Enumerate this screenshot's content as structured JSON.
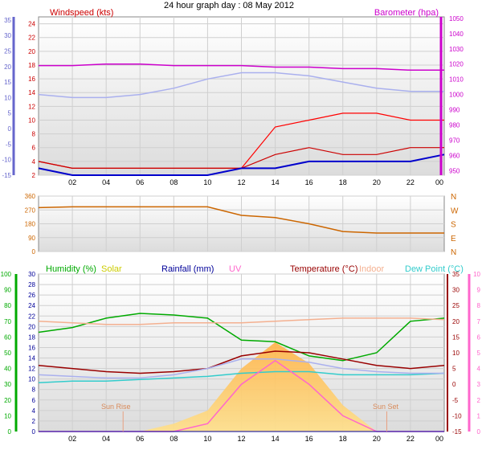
{
  "title": "24 hour graph day : 08 May 2012",
  "x_ticks": [
    "02",
    "04",
    "06",
    "08",
    "10",
    "12",
    "14",
    "16",
    "18",
    "20",
    "22",
    "00"
  ],
  "colors": {
    "windspeed": "#cc0000",
    "gust": "#ff0000",
    "avg_wind": "#0000cc",
    "barometer": "#cc00cc",
    "wind_dir": "#cc6600",
    "humidity": "#00aa00",
    "solar": "#ffcc66",
    "rainfall": "#000099",
    "uv": "#ff66cc",
    "temperature": "#990000",
    "indoor": "#f4b090",
    "dewpoint": "#33cccc",
    "axis_blue": "#6666cc",
    "grid": "#cfcfcf"
  },
  "panels": {
    "wind": {
      "label_windspeed": "Windspeed (kts)",
      "label_barometer": "Barometer (hpa)"
    },
    "direction": {
      "left_ticks": [
        "360",
        "270",
        "180",
        "90",
        "0"
      ],
      "compass": [
        "N",
        "W",
        "S",
        "E",
        "N"
      ]
    },
    "weather": {
      "label_humidity": "Humidity (%)",
      "label_solar": "Solar",
      "label_rainfall": "Rainfall (mm)",
      "label_uv": "UV",
      "label_temperature": "Temperature (°C)",
      "label_indoor": "Indoor",
      "label_dewpoint": "Dew Point (°C)",
      "sunrise": "Sun Rise",
      "sunset": "Sun Set"
    }
  },
  "chart_data": [
    {
      "type": "line",
      "title": "24 hour graph day : 08 May 2012",
      "x": [
        "00",
        "02",
        "04",
        "06",
        "08",
        "10",
        "12",
        "14",
        "16",
        "18",
        "20",
        "22",
        "00"
      ],
      "y_axes": {
        "windspeed": {
          "label": "Windspeed (kts)",
          "ylim": [
            2,
            25
          ],
          "ticks": [
            2,
            4,
            6,
            8,
            10,
            12,
            14,
            16,
            18,
            20,
            22,
            24
          ]
        },
        "barometer": {
          "label": "Barometer (hpa)",
          "ylim": [
            947,
            1051
          ],
          "ticks": [
            950,
            960,
            970,
            980,
            990,
            1000,
            1010,
            1020,
            1030,
            1040,
            1050
          ]
        },
        "outer_blue": {
          "ylim": [
            -15,
            36
          ],
          "ticks": [
            -15,
            -10,
            -5,
            0,
            5,
            10,
            15,
            20,
            25,
            30,
            35
          ]
        }
      },
      "series": [
        {
          "name": "Barometer (hpa)",
          "axis": "barometer",
          "values": [
            1019,
            1019,
            1020,
            1020,
            1019,
            1019,
            1019,
            1018,
            1018,
            1017,
            1017,
            1016,
            1016
          ]
        },
        {
          "name": "Windspeed (kts)",
          "axis": "windspeed",
          "values": [
            4,
            3,
            3,
            3,
            3,
            3,
            3,
            9,
            10,
            11,
            11,
            10,
            10
          ]
        },
        {
          "axis": "windspeed",
          "values": [
            4,
            3,
            3,
            3,
            3,
            3,
            3,
            5,
            6,
            5,
            5,
            6,
            6
          ]
        },
        {
          "axis": "windspeed",
          "values": [
            3,
            2,
            2,
            2,
            2,
            2,
            3,
            3,
            4,
            4,
            4,
            4,
            5
          ]
        },
        {
          "axis": "outer_blue",
          "values": [
            11,
            10,
            10,
            11,
            13,
            16,
            18,
            18,
            17,
            15,
            13,
            12,
            12
          ]
        }
      ],
      "grid": true
    },
    {
      "type": "line",
      "x": [
        "00",
        "02",
        "04",
        "06",
        "08",
        "10",
        "12",
        "14",
        "16",
        "18",
        "20",
        "22",
        "00"
      ],
      "y_axis": {
        "ylim": [
          0,
          360
        ],
        "ticks": [
          "360",
          "270",
          "180",
          "90",
          "0"
        ]
      },
      "compass": [
        "N",
        "W",
        "S",
        "E",
        "N"
      ],
      "series": [
        {
          "values": [
            285,
            290,
            290,
            290,
            290,
            290,
            235,
            220,
            180,
            130,
            120,
            120,
            120
          ]
        }
      ],
      "grid": true
    },
    {
      "type": "line",
      "x": [
        "00",
        "02",
        "04",
        "06",
        "08",
        "10",
        "12",
        "14",
        "16",
        "18",
        "20",
        "22",
        "00"
      ],
      "y_axes": {
        "humidity": {
          "label": "Humidity (%)",
          "ylim": [
            0,
            100
          ],
          "ticks": [
            0,
            10,
            20,
            30,
            40,
            50,
            60,
            70,
            80,
            90,
            100
          ]
        },
        "rainfall": {
          "label": "Rainfall (mm)",
          "ylim": [
            0,
            30
          ],
          "ticks": [
            0,
            2,
            4,
            6,
            8,
            10,
            12,
            14,
            16,
            18,
            20,
            22,
            24,
            26,
            28,
            30
          ]
        },
        "temperature": {
          "label": "Temperature (°C)",
          "ylim": [
            -15,
            35
          ],
          "ticks": [
            -15,
            -10,
            -5,
            0,
            5,
            10,
            15,
            20,
            25,
            30,
            35
          ]
        },
        "uv": {
          "label": "UV",
          "ylim": [
            0,
            10
          ],
          "ticks": [
            0,
            1,
            2,
            3,
            4,
            5,
            6,
            7,
            8,
            9,
            10
          ]
        }
      },
      "series": [
        {
          "name": "Humidity (%)",
          "axis": "humidity",
          "values": [
            63,
            66,
            72,
            75,
            74,
            72,
            58,
            57,
            48,
            45,
            50,
            70,
            72
          ]
        },
        {
          "name": "Indoor",
          "axis": "temperature",
          "values": [
            20,
            19.5,
            19,
            19,
            19.5,
            19.5,
            19.5,
            20,
            20.5,
            21,
            21,
            21,
            20.5
          ]
        },
        {
          "name": "Temperature (°C)",
          "axis": "temperature",
          "values": [
            6,
            5,
            4,
            3.5,
            4,
            5,
            9,
            10.5,
            10,
            8,
            6,
            5,
            6
          ]
        },
        {
          "name": "Dew Point (°C)",
          "axis": "temperature",
          "values": [
            0.5,
            1,
            1,
            1.5,
            2,
            2.5,
            3.5,
            4,
            4,
            3,
            3,
            3,
            3.5
          ]
        },
        {
          "axis": "temperature",
          "values": [
            3,
            2.5,
            2,
            2,
            3,
            5,
            8,
            8,
            7,
            5,
            4,
            3.5,
            3.5
          ]
        },
        {
          "name": "UV",
          "axis": "uv",
          "values": [
            0,
            0,
            0,
            0,
            0,
            0.5,
            3,
            4.5,
            3,
            1,
            0,
            0,
            0
          ]
        },
        {
          "name": "Solar",
          "axis": "rainfall",
          "values": [
            0,
            0,
            0,
            0,
            1.5,
            4,
            12,
            17,
            13,
            5,
            0,
            0,
            0
          ]
        },
        {
          "name": "Rainfall (mm)",
          "axis": "rainfall",
          "values": [
            0,
            0,
            0,
            0,
            0,
            0,
            0,
            0,
            0,
            0,
            0,
            0,
            0
          ]
        }
      ],
      "annotations": [
        "Sun Rise",
        "Sun Set"
      ],
      "grid": true
    }
  ]
}
